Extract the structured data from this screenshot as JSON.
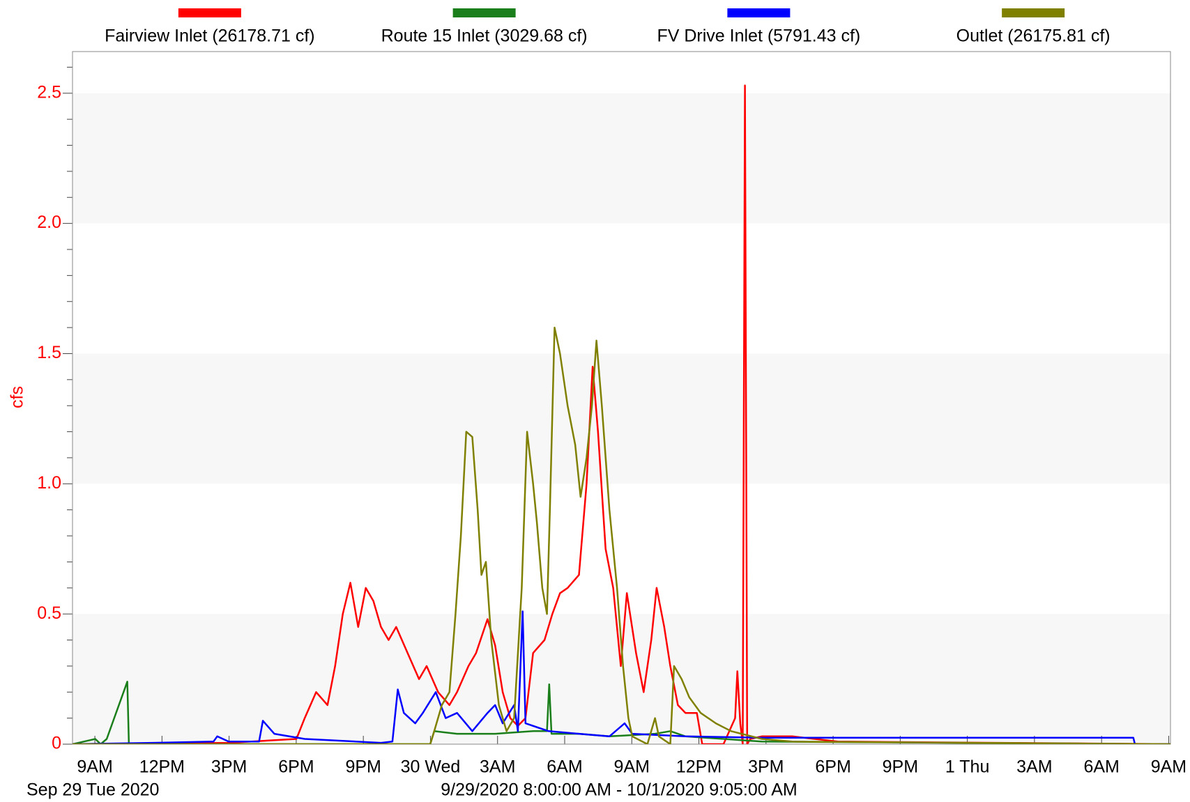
{
  "chart_data": {
    "type": "line",
    "y_label": "cfs",
    "x_caption": "Sep 29 Tue 2020",
    "subtitle": "9/29/2020 8:00:00 AM - 10/1/2020 9:05:00 AM",
    "xlim": [
      8,
      57.08
    ],
    "xticks": [
      {
        "value": 9,
        "label": "9AM"
      },
      {
        "value": 12,
        "label": "12PM"
      },
      {
        "value": 15,
        "label": "3PM"
      },
      {
        "value": 18,
        "label": "6PM"
      },
      {
        "value": 21,
        "label": "9PM"
      },
      {
        "value": 24,
        "label": "30 Wed"
      },
      {
        "value": 27,
        "label": "3AM"
      },
      {
        "value": 30,
        "label": "6AM"
      },
      {
        "value": 33,
        "label": "9AM"
      },
      {
        "value": 36,
        "label": "12PM"
      },
      {
        "value": 39,
        "label": "3PM"
      },
      {
        "value": 42,
        "label": "6PM"
      },
      {
        "value": 45,
        "label": "9PM"
      },
      {
        "value": 48,
        "label": "1 Thu"
      },
      {
        "value": 51,
        "label": "3AM"
      },
      {
        "value": 54,
        "label": "6AM"
      },
      {
        "value": 57,
        "label": "9AM"
      }
    ],
    "ylim": [
      0,
      2.66
    ],
    "yticks": [
      0,
      0.5,
      {
        "value": 1,
        "label": "1.0"
      },
      1.5,
      {
        "value": 2,
        "label": "2.0"
      },
      2.5
    ],
    "ytick_color": "#ff0000",
    "band_color": "#f7f7f7",
    "legend": "top",
    "series": [
      {
        "name": "Fairview Inlet (26178.71 cf)",
        "color": "#ff0000",
        "x": [
          8,
          14.98,
          18.01,
          18.38,
          18.89,
          19.4,
          19.74,
          20.08,
          20.42,
          20.77,
          21.11,
          21.45,
          21.79,
          22.13,
          22.47,
          22.98,
          23.49,
          23.83,
          24.34,
          24.85,
          25.19,
          25.7,
          26.04,
          26.55,
          26.89,
          27.23,
          27.57,
          27.91,
          28.25,
          28.59,
          29.1,
          29.45,
          29.79,
          30.13,
          30.64,
          30.98,
          31.25,
          31.49,
          31.83,
          32.17,
          32.51,
          32.78,
          33.19,
          33.53,
          33.87,
          34.11,
          34.45,
          34.72,
          35.06,
          35.4,
          35.91,
          36.15,
          37.1,
          37.62,
          37.72,
          37.85,
          37.96,
          38.06,
          38.16,
          38.3,
          38.81,
          40.17,
          42.21,
          57.08
        ],
        "values": [
          0,
          0.005,
          0.02,
          0.1,
          0.2,
          0.15,
          0.3,
          0.5,
          0.62,
          0.45,
          0.6,
          0.55,
          0.45,
          0.4,
          0.45,
          0.35,
          0.25,
          0.3,
          0.2,
          0.15,
          0.2,
          0.3,
          0.35,
          0.48,
          0.38,
          0.2,
          0.1,
          0.07,
          0.1,
          0.35,
          0.4,
          0.5,
          0.58,
          0.6,
          0.65,
          1.0,
          1.45,
          1.2,
          0.75,
          0.6,
          0.3,
          0.58,
          0.35,
          0.2,
          0.4,
          0.6,
          0.45,
          0.3,
          0.15,
          0.12,
          0.12,
          0,
          0,
          0.1,
          0.28,
          0.08,
          0,
          2.53,
          0,
          0.02,
          0.03,
          0.03,
          0.01,
          0
        ]
      },
      {
        "name": "Route 15 Inlet (3029.68 cf)",
        "color": "#1a7f1a",
        "x": [
          8,
          9.02,
          9.26,
          9.53,
          10.45,
          10.52,
          23.99,
          24.17,
          25.19,
          26.89,
          28.59,
          29.21,
          29.31,
          29.41,
          30.64,
          32.0,
          34.04,
          34.72,
          35.4,
          38.81,
          57.08
        ],
        "values": [
          0,
          0.02,
          0,
          0.02,
          0.24,
          0,
          0,
          0.05,
          0.04,
          0.04,
          0.05,
          0.05,
          0.23,
          0.04,
          0.04,
          0.03,
          0.04,
          0.05,
          0.03,
          0.01,
          0
        ]
      },
      {
        "name": "FV Drive Inlet (5791.43 cf)",
        "color": "#0000ff",
        "x": [
          8,
          11.57,
          14.3,
          14.47,
          14.98,
          16.34,
          16.51,
          17.02,
          18.38,
          21.79,
          22.3,
          22.54,
          22.81,
          23.32,
          23.66,
          24.24,
          24.68,
          25.19,
          25.87,
          26.55,
          26.89,
          27.23,
          27.74,
          27.91,
          28.12,
          28.25,
          29.28,
          30.64,
          32.0,
          32.68,
          33.02,
          35.4,
          38.81,
          55.42,
          55.49,
          57.08
        ],
        "values": [
          0,
          0.005,
          0.01,
          0.03,
          0.01,
          0.01,
          0.09,
          0.04,
          0.02,
          0.005,
          0.01,
          0.21,
          0.12,
          0.08,
          0.12,
          0.2,
          0.1,
          0.12,
          0.05,
          0.12,
          0.15,
          0.08,
          0.15,
          0.05,
          0.51,
          0.08,
          0.05,
          0.04,
          0.03,
          0.08,
          0.04,
          0.03,
          0.025,
          0.025,
          0,
          0
        ]
      },
      {
        "name": "Outlet (26175.81 cf)",
        "color": "#808000",
        "x": [
          8,
          23.99,
          24.17,
          24.51,
          24.85,
          25.12,
          25.36,
          25.6,
          25.87,
          26.11,
          26.28,
          26.48,
          26.72,
          27.06,
          27.4,
          27.74,
          28.08,
          28.32,
          28.59,
          28.76,
          29.0,
          29.21,
          29.34,
          29.55,
          29.79,
          30.13,
          30.47,
          30.71,
          30.98,
          31.22,
          31.42,
          31.66,
          32.0,
          32.34,
          32.61,
          32.85,
          33.02,
          33.7,
          34.04,
          34.21,
          34.72,
          34.89,
          35.23,
          35.57,
          36.08,
          36.76,
          37.44,
          38.81,
          40.17,
          57.08
        ],
        "values": [
          0,
          0,
          0.05,
          0.15,
          0.2,
          0.5,
          0.8,
          1.2,
          1.18,
          0.9,
          0.65,
          0.7,
          0.4,
          0.15,
          0.05,
          0.1,
          0.6,
          1.2,
          1.0,
          0.85,
          0.6,
          0.5,
          0.9,
          1.6,
          1.5,
          1.3,
          1.15,
          0.95,
          1.1,
          1.3,
          1.55,
          1.3,
          0.9,
          0.6,
          0.3,
          0.1,
          0.03,
          0,
          0.1,
          0.03,
          0,
          0.3,
          0.25,
          0.18,
          0.12,
          0.08,
          0.05,
          0.02,
          0.01,
          0
        ]
      }
    ]
  }
}
